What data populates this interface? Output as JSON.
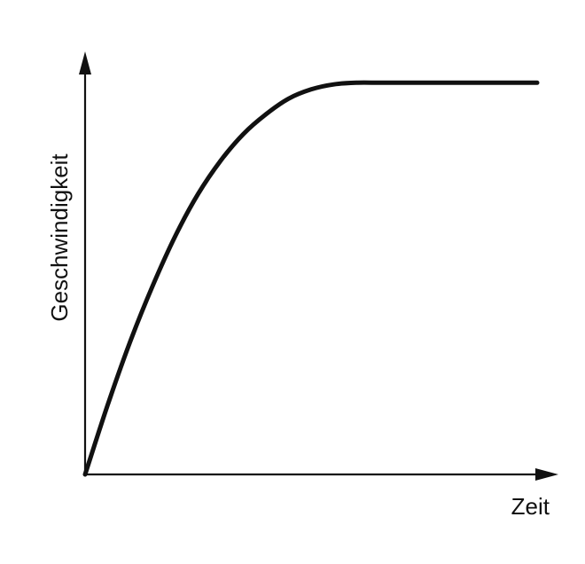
{
  "chart_data": {
    "type": "line",
    "title": "",
    "xlabel": "Zeit",
    "ylabel": "Geschwindigkeit",
    "xlim": [
      0,
      100
    ],
    "ylim": [
      0,
      100
    ],
    "grid": false,
    "ticks": false,
    "series": [
      {
        "x": [
          0,
          5,
          10,
          15,
          20,
          25,
          30,
          35,
          40,
          45,
          50,
          55,
          60,
          65,
          70,
          75,
          80,
          85,
          90,
          95,
          100
        ],
        "y": [
          0,
          16.5,
          31.6,
          44.9,
          56.7,
          66.6,
          74.5,
          80.8,
          85.5,
          89.2,
          91.4,
          92.6,
          93.0,
          93.0,
          93.0,
          93.0,
          93.0,
          93.0,
          93.0,
          93.0,
          93.0
        ]
      }
    ],
    "line_color": "#111111"
  }
}
